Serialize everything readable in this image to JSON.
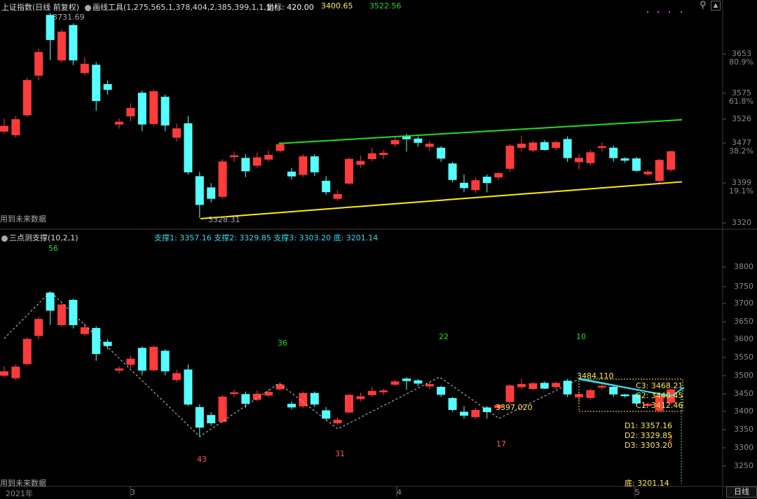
{
  "colors": {
    "up": "#ff3b3b",
    "down": "#55ffff",
    "channel_top": "#22dd22",
    "channel_bottom": "#ffee00",
    "grid": "#2a2a2a",
    "axis_text": "#8a8a8a",
    "white_text": "#dddddd",
    "cyan_text": "#33ddee",
    "yellow_text": "#ffee44",
    "green_text": "#22dd22",
    "red_text": "#ff5555",
    "magenta": "#ff33ff"
  },
  "header": {
    "index_name": "上证指数",
    "period": "(日线 前复权)",
    "tool_label": "画线工具(1,275,565,1,378,404,2,385,399,1,1,1)",
    "coord_label": "坐标:",
    "coord_value": "420.00",
    "value_yellow": "3400.65",
    "value_green": "3522.56"
  },
  "top_panel": {
    "y_labels": [
      "3653",
      "3575",
      "3526",
      "3477",
      "3399",
      "3320"
    ],
    "pct_labels": [
      "80.9%",
      "61.8%",
      "38.2%",
      "19.1%"
    ],
    "high_mark": "3731.69",
    "low_mark": "3328.31",
    "future_label": "用到未来数据"
  },
  "bottom_panel": {
    "indicator_name": "三点测支撑(10,2,1)",
    "support1": "支撑1: 3357.16",
    "support2": "支撑2: 3329.85",
    "support3": "支撑3: 3303.20",
    "bottom": "底: 3201.14",
    "y_labels": [
      "3800",
      "3750",
      "3700",
      "3650",
      "3600",
      "3550",
      "3500",
      "3450",
      "3400",
      "3350",
      "3300",
      "3250"
    ],
    "counts": [
      "56",
      "36",
      "22",
      "10",
      "43",
      "31",
      "17",
      "2"
    ],
    "pivot_high": "3484.110",
    "pivot_low": "3397.020",
    "c3": "C3: 3468.21",
    "c2": "C2: 3440.45",
    "c1": "C1: 3412.46",
    "d1": "D1: 3357.16",
    "d2": "D2: 3329.85",
    "d3": "D3: 3303.20",
    "di": "底: 3201.14",
    "future_label": "用到未来数据"
  },
  "x_axis": {
    "labels": [
      "2021年",
      "3",
      "4",
      "5"
    ],
    "period_button": "日线"
  },
  "chart_data": {
    "type": "candlestick",
    "title": "上证指数 (日线 前复权)",
    "candles": [
      {
        "o": 3500,
        "c": 3510,
        "h": 3525,
        "l": 3495
      },
      {
        "o": 3493,
        "c": 3523,
        "h": 3530,
        "l": 3488
      },
      {
        "o": 3532,
        "c": 3600,
        "h": 3605,
        "l": 3528
      },
      {
        "o": 3610,
        "c": 3655,
        "h": 3662,
        "l": 3600
      },
      {
        "o": 3728,
        "c": 3680,
        "h": 3732,
        "l": 3640
      },
      {
        "o": 3640,
        "c": 3695,
        "h": 3700,
        "l": 3635
      },
      {
        "o": 3708,
        "c": 3640,
        "h": 3712,
        "l": 3630
      },
      {
        "o": 3615,
        "c": 3632,
        "h": 3645,
        "l": 3610
      },
      {
        "o": 3630,
        "c": 3560,
        "h": 3636,
        "l": 3540
      },
      {
        "o": 3592,
        "c": 3582,
        "h": 3600,
        "l": 3572
      },
      {
        "o": 3514,
        "c": 3518,
        "h": 3525,
        "l": 3505
      },
      {
        "o": 3530,
        "c": 3545,
        "h": 3555,
        "l": 3520
      },
      {
        "o": 3575,
        "c": 3514,
        "h": 3580,
        "l": 3500
      },
      {
        "o": 3515,
        "c": 3578,
        "h": 3582,
        "l": 3510
      },
      {
        "o": 3567,
        "c": 3512,
        "h": 3572,
        "l": 3500
      },
      {
        "o": 3488,
        "c": 3505,
        "h": 3515,
        "l": 3480
      },
      {
        "o": 3515,
        "c": 3420,
        "h": 3530,
        "l": 3415
      },
      {
        "o": 3411,
        "c": 3356,
        "h": 3420,
        "l": 3330
      },
      {
        "o": 3389,
        "c": 3368,
        "h": 3398,
        "l": 3360
      },
      {
        "o": 3372,
        "c": 3440,
        "h": 3445,
        "l": 3368
      },
      {
        "o": 3452,
        "c": 3452,
        "h": 3460,
        "l": 3440
      },
      {
        "o": 3447,
        "c": 3422,
        "h": 3455,
        "l": 3410
      },
      {
        "o": 3433,
        "c": 3448,
        "h": 3458,
        "l": 3428
      },
      {
        "o": 3445,
        "c": 3453,
        "h": 3462,
        "l": 3440
      },
      {
        "o": 3462,
        "c": 3474,
        "h": 3480,
        "l": 3458
      },
      {
        "o": 3420,
        "c": 3412,
        "h": 3428,
        "l": 3405
      },
      {
        "o": 3415,
        "c": 3450,
        "h": 3455,
        "l": 3410
      },
      {
        "o": 3450,
        "c": 3420,
        "h": 3455,
        "l": 3412
      },
      {
        "o": 3402,
        "c": 3381,
        "h": 3412,
        "l": 3375
      },
      {
        "o": 3368,
        "c": 3376,
        "h": 3384,
        "l": 3363
      },
      {
        "o": 3398,
        "c": 3445,
        "h": 3448,
        "l": 3395
      },
      {
        "o": 3435,
        "c": 3441,
        "h": 3452,
        "l": 3428
      },
      {
        "o": 3446,
        "c": 3456,
        "h": 3468,
        "l": 3441
      },
      {
        "o": 3454,
        "c": 3457,
        "h": 3463,
        "l": 3445
      },
      {
        "o": 3475,
        "c": 3482,
        "h": 3488,
        "l": 3470
      },
      {
        "o": 3490,
        "c": 3485,
        "h": 3495,
        "l": 3460
      },
      {
        "o": 3485,
        "c": 3478,
        "h": 3490,
        "l": 3470
      },
      {
        "o": 3470,
        "c": 3475,
        "h": 3481,
        "l": 3461
      },
      {
        "o": 3467,
        "c": 3447,
        "h": 3471,
        "l": 3440
      },
      {
        "o": 3436,
        "c": 3405,
        "h": 3440,
        "l": 3400
      },
      {
        "o": 3398,
        "c": 3389,
        "h": 3415,
        "l": 3380
      },
      {
        "o": 3385,
        "c": 3403,
        "h": 3409,
        "l": 3379
      },
      {
        "o": 3410,
        "c": 3399,
        "h": 3415,
        "l": 3380
      },
      {
        "o": 3410,
        "c": 3417,
        "h": 3420,
        "l": 3404
      },
      {
        "o": 3427,
        "c": 3471,
        "h": 3475,
        "l": 3420
      },
      {
        "o": 3468,
        "c": 3475,
        "h": 3491,
        "l": 3461
      },
      {
        "o": 3463,
        "c": 3477,
        "h": 3481,
        "l": 3459
      },
      {
        "o": 3478,
        "c": 3464,
        "h": 3483,
        "l": 3462
      },
      {
        "o": 3468,
        "c": 3478,
        "h": 3482,
        "l": 3462
      },
      {
        "o": 3484,
        "c": 3448,
        "h": 3490,
        "l": 3440
      },
      {
        "o": 3440,
        "c": 3447,
        "h": 3455,
        "l": 3425
      },
      {
        "o": 3438,
        "c": 3458,
        "h": 3463,
        "l": 3433
      },
      {
        "o": 3468,
        "c": 3470,
        "h": 3478,
        "l": 3460
      },
      {
        "o": 3467,
        "c": 3448,
        "h": 3472,
        "l": 3440
      },
      {
        "o": 3446,
        "c": 3443,
        "h": 3449,
        "l": 3438
      },
      {
        "o": 3446,
        "c": 3423,
        "h": 3450,
        "l": 3420
      },
      {
        "o": 3416,
        "c": 3420,
        "h": 3424,
        "l": 3412
      },
      {
        "o": 3403,
        "c": 3443,
        "h": 3446,
        "l": 3397
      },
      {
        "o": 3425,
        "c": 3460,
        "h": 3462,
        "l": 3420
      }
    ],
    "channel_top": {
      "x0": 3476,
      "x1": 3522.56
    },
    "channel_bottom": {
      "x0": 3328.31,
      "x1": 3400.65
    }
  }
}
